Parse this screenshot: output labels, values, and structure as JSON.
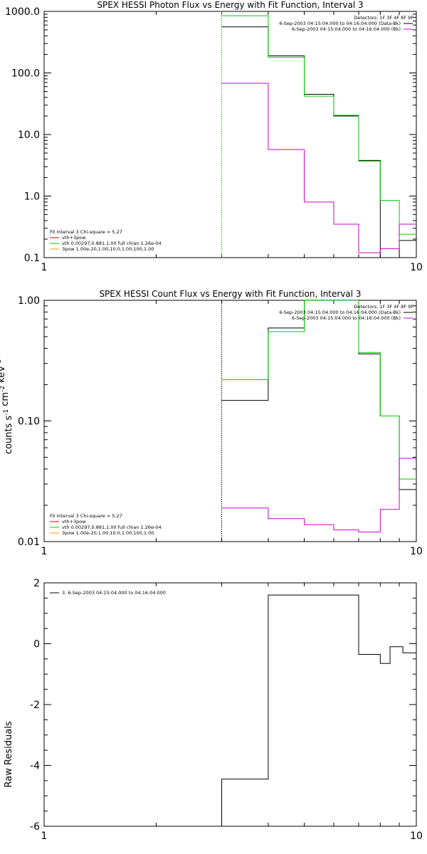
{
  "colors": {
    "black": "#000000",
    "green": "#00cc00",
    "magenta": "#cc00cc",
    "red": "#cc0000",
    "orange": "#ff9900",
    "background": "#ffffff"
  },
  "chart_data": [
    {
      "type": "line",
      "scale": {
        "x": "log",
        "y": "log"
      },
      "title": "SPEX HESSI Photon Flux vs Energy with Fit Function, Interval 3",
      "xlabel": "",
      "ylabel": "",
      "xlim": [
        1,
        10
      ],
      "ylim": [
        0.1,
        1000
      ],
      "x_tick_labels": [
        "1",
        "10"
      ],
      "y_tick_labels": [
        "0.1",
        "1.0",
        "10.0",
        "100.0",
        "1000.0"
      ],
      "vline_x": 3,
      "vline_color": "#00cc00",
      "detectors": "Detectors: 1F 3F 4F 8F 9F",
      "legend_right": [
        {
          "text": "6-Sep-2003 04:15:04.000 to 04:16:04.000 (Data-Bk)",
          "color": "#000000"
        },
        {
          "text": "6-Sep-2003 04:15:04.000 to 04:16:04.000 (Bk)",
          "color": "#cc00cc"
        }
      ],
      "legend_left_header": "Fit Interval 3   Chi-square = 5.27",
      "legend_left": [
        {
          "text": "vth+3pow",
          "color": "#cc0000"
        },
        {
          "text": "vth 0.00297,0.881,1.00   full chian 1.26e-04",
          "color": "#00cc00"
        },
        {
          "text": "3pow 1.00e-20,1.00,10.0,1.00,100,1.00",
          "color": "#ff9900"
        }
      ],
      "series": [
        {
          "name": "Data-Bk",
          "color": "#000000",
          "edges": [
            3,
            4,
            5,
            6,
            7,
            8,
            9,
            10
          ],
          "values": [
            560,
            190,
            45,
            20,
            3.8,
            0.1,
            0.19
          ]
        },
        {
          "name": "vth+3pow",
          "color": "#00cc00",
          "edges": [
            3,
            4,
            5,
            6,
            7,
            8,
            9,
            10
          ],
          "values": [
            850,
            180,
            42,
            20.5,
            3.7,
            0.85,
            0.24
          ]
        },
        {
          "name": "Bk",
          "color": "#cc00cc",
          "edges": [
            3,
            4,
            5,
            6,
            7,
            8,
            9,
            10
          ],
          "values": [
            68,
            5.7,
            0.8,
            0.35,
            0.12,
            0.14,
            0.35
          ]
        }
      ]
    },
    {
      "type": "line",
      "scale": {
        "x": "log",
        "y": "log"
      },
      "title": "SPEX HESSI Count Flux vs Energy with Fit Function, Interval 3",
      "xlabel": "",
      "ylabel": "counts s^-1 cm^-2 keV^-1",
      "xlim": [
        1,
        10
      ],
      "ylim": [
        0.01,
        1
      ],
      "x_tick_labels": [
        "1",
        "10"
      ],
      "y_tick_labels": [
        "0.01",
        "0.10",
        "1.00"
      ],
      "vline_x": 3,
      "vline_color": "#000000",
      "detectors": "Detectors: 1F 3F 4F 8F 9F",
      "legend_right": [
        {
          "text": "6-Sep-2003 04:15:04.000 to 04:16:04.000 (Data-Bk)",
          "color": "#000000"
        },
        {
          "text": "6-Sep-2003 04:15:04.000 to 04:16:04.000 (Bk)",
          "color": "#cc00cc"
        }
      ],
      "legend_left_header": "Fit Interval 3   Chi-square = 5.27",
      "legend_left": [
        {
          "text": "vth+3pow",
          "color": "#cc0000"
        },
        {
          "text": "vth 0.00297,0.881,1.00   full chian 1.26e-04",
          "color": "#00cc00"
        },
        {
          "text": "3pow 1.00e-20,1.00,10.0,1.00,100,1.00",
          "color": "#ff9900"
        }
      ],
      "series": [
        {
          "name": "Data-Bk",
          "color": "#000000",
          "edges": [
            3,
            4,
            5,
            6,
            7,
            8,
            9,
            10
          ],
          "values": [
            0.148,
            0.59,
            1.0,
            1.0,
            0.36,
            0.11,
            0.027
          ]
        },
        {
          "name": "vth+3pow",
          "color": "#00cc00",
          "edges": [
            3,
            4,
            5,
            6,
            7,
            8,
            9,
            10
          ],
          "values": [
            0.22,
            0.55,
            1.0,
            1.0,
            0.37,
            0.11,
            0.033
          ]
        },
        {
          "name": "Bk",
          "color": "#cc00cc",
          "edges": [
            3,
            4,
            5,
            6,
            7,
            8,
            9,
            10
          ],
          "values": [
            0.019,
            0.0155,
            0.0138,
            0.0125,
            0.012,
            0.0185,
            0.049
          ]
        }
      ]
    },
    {
      "type": "line",
      "scale": {
        "x": "log",
        "y": "linear"
      },
      "title": "",
      "xlabel": "",
      "ylabel": "Raw Residuals",
      "xlim": [
        1,
        10
      ],
      "ylim": [
        -6,
        2
      ],
      "x_tick_labels": [
        "1",
        "10"
      ],
      "y_tick_values": [
        -6,
        -4,
        -2,
        0,
        2
      ],
      "legend_right": [],
      "legend_left_header": "",
      "legend_left": [],
      "legend_top_left": "3.  6-Sep-2003 04:15:04.000 to 04:16:04.000",
      "series": [
        {
          "name": "Residuals",
          "color": "#000000",
          "edges": [
            3,
            4,
            5,
            7,
            8,
            8.5,
            9.2,
            10
          ],
          "values": [
            -4.45,
            1.6,
            1.6,
            -0.35,
            -0.65,
            -0.1,
            -0.3
          ],
          "drop_to_bottom_at_start": true
        }
      ]
    }
  ]
}
